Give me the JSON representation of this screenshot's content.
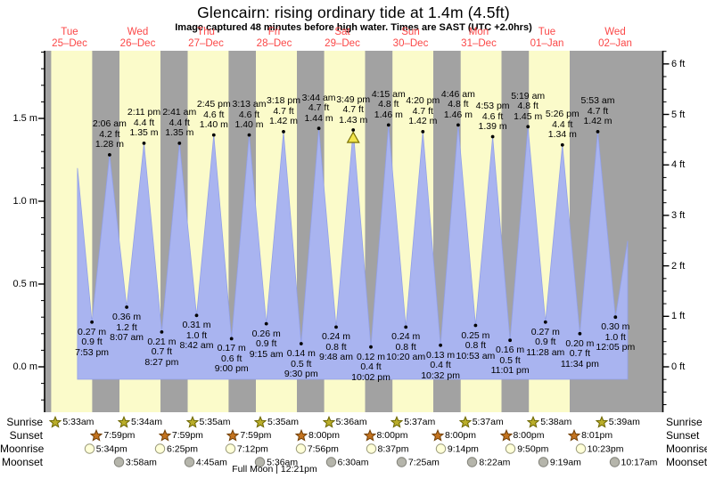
{
  "title": "Glencairn: rising  ordinary tide at 1.4m (4.5ft)",
  "subtitle": "Image captured 48 minutes before high water. Times are SAST (UTC +2.0hrs)",
  "colors": {
    "day_band": "#fbfbca",
    "night_band": "#a2a2a2",
    "tide_fill": "#a9b4f0",
    "tide_stroke": "#92a0e8",
    "date_red": "#fb4747",
    "marker_fill": "#f3e64b",
    "marker_stroke": "#7a7000",
    "sunrise_star": "#b9ad2a",
    "sunrise_stroke": "#6b6400",
    "sunset_star": "#c3731f",
    "sunset_stroke": "#713f06",
    "moonrise_fill": "#ffffd8",
    "moonrise_stroke": "#9a9a7a",
    "moonset_fill": "#b5b5ab",
    "moonset_stroke": "#83837b"
  },
  "chart_data": {
    "type": "area",
    "title": "Glencairn: rising  ordinary tide at 1.4m (4.5ft)",
    "y_axis_left_labels": [
      "0.0 m",
      "0.5 m",
      "1.0 m",
      "1.5 m"
    ],
    "y_axis_right_labels": [
      "0 ft",
      "1 ft",
      "2 ft",
      "3 ft",
      "4 ft",
      "5 ft",
      "6 ft"
    ],
    "ylim_m": [
      -0.27,
      1.91
    ],
    "days": [
      {
        "weekday": "Tue",
        "date": "25–Dec"
      },
      {
        "weekday": "Wed",
        "date": "26–Dec"
      },
      {
        "weekday": "Thu",
        "date": "27–Dec"
      },
      {
        "weekday": "Fri",
        "date": "28–Dec"
      },
      {
        "weekday": "Sat",
        "date": "29–Dec"
      },
      {
        "weekday": "Sun",
        "date": "30–Dec"
      },
      {
        "weekday": "Mon",
        "date": "31–Dec"
      },
      {
        "weekday": "Tue",
        "date": "01–Jan"
      },
      {
        "weekday": "Wed",
        "date": "02–Jan"
      }
    ],
    "curve_start": {
      "day": 0,
      "h24": 14.8,
      "m": 1.2
    },
    "curve_end": {
      "day": 8,
      "h24": 16.4,
      "m": 0.76
    },
    "tides": [
      {
        "day": 0,
        "time": "7:53 pm",
        "type": "low",
        "m": "0.27",
        "ft": "0.9"
      },
      {
        "day": 1,
        "time": "2:06 am",
        "type": "high",
        "m": "1.28",
        "ft": "4.2"
      },
      {
        "day": 1,
        "time": "8:07 am",
        "type": "low",
        "m": "0.36",
        "ft": "1.2"
      },
      {
        "day": 1,
        "time": "2:11 pm",
        "type": "high",
        "m": "1.35",
        "ft": "4.4"
      },
      {
        "day": 1,
        "time": "8:27 pm",
        "type": "low",
        "m": "0.21",
        "ft": "0.7"
      },
      {
        "day": 2,
        "time": "2:41 am",
        "type": "high",
        "m": "1.35",
        "ft": "4.4"
      },
      {
        "day": 2,
        "time": "8:42 am",
        "type": "low",
        "m": "0.31",
        "ft": "1.0"
      },
      {
        "day": 2,
        "time": "2:45 pm",
        "type": "high",
        "m": "1.40",
        "ft": "4.6"
      },
      {
        "day": 2,
        "time": "9:00 pm",
        "type": "low",
        "m": "0.17",
        "ft": "0.6"
      },
      {
        "day": 3,
        "time": "3:13 am",
        "type": "high",
        "m": "1.40",
        "ft": "4.6"
      },
      {
        "day": 3,
        "time": "9:15 am",
        "type": "low",
        "m": "0.26",
        "ft": "0.9"
      },
      {
        "day": 3,
        "time": "3:18 pm",
        "type": "high",
        "m": "1.42",
        "ft": "4.7"
      },
      {
        "day": 3,
        "time": "9:30 pm",
        "type": "low",
        "m": "0.14",
        "ft": "0.5"
      },
      {
        "day": 4,
        "time": "3:44 am",
        "type": "high",
        "m": "1.44",
        "ft": "4.7"
      },
      {
        "day": 4,
        "time": "9:48 am",
        "type": "low",
        "m": "0.24",
        "ft": "0.8"
      },
      {
        "day": 4,
        "time": "3:49 pm",
        "type": "high",
        "m": "1.43",
        "ft": "4.7",
        "now": true
      },
      {
        "day": 4,
        "time": "10:02 pm",
        "type": "low",
        "m": "0.12",
        "ft": "0.4"
      },
      {
        "day": 5,
        "time": "4:15 am",
        "type": "high",
        "m": "1.46",
        "ft": "4.8"
      },
      {
        "day": 5,
        "time": "10:20 am",
        "type": "low",
        "m": "0.24",
        "ft": "0.8"
      },
      {
        "day": 5,
        "time": "4:20 pm",
        "type": "high",
        "m": "1.42",
        "ft": "4.7"
      },
      {
        "day": 5,
        "time": "10:32 pm",
        "type": "low",
        "m": "0.13",
        "ft": "0.4"
      },
      {
        "day": 6,
        "time": "4:46 am",
        "type": "high",
        "m": "1.46",
        "ft": "4.8"
      },
      {
        "day": 6,
        "time": "10:53 am",
        "type": "low",
        "m": "0.25",
        "ft": "0.8"
      },
      {
        "day": 6,
        "time": "4:53 pm",
        "type": "high",
        "m": "1.39",
        "ft": "4.6"
      },
      {
        "day": 6,
        "time": "11:01 pm",
        "type": "low",
        "m": "0.16",
        "ft": "0.5"
      },
      {
        "day": 7,
        "time": "5:19 am",
        "type": "high",
        "m": "1.45",
        "ft": "4.8"
      },
      {
        "day": 7,
        "time": "11:28 am",
        "type": "low",
        "m": "0.27",
        "ft": "0.9"
      },
      {
        "day": 7,
        "time": "5:26 pm",
        "type": "high",
        "m": "1.34",
        "ft": "4.4"
      },
      {
        "day": 7,
        "time": "11:34 pm",
        "type": "low",
        "m": "0.20",
        "ft": "0.7"
      },
      {
        "day": 8,
        "time": "5:53 am",
        "type": "high",
        "m": "1.42",
        "ft": "4.7"
      },
      {
        "day": 8,
        "time": "12:05 pm",
        "type": "low",
        "m": "0.30",
        "ft": "1.0"
      }
    ],
    "astro": {
      "rows": [
        {
          "label": "Sunrise",
          "icon": "sunrise-star-icon",
          "times": [
            {
              "day": 0,
              "time": "5:33am"
            },
            {
              "day": 1,
              "time": "5:34am"
            },
            {
              "day": 2,
              "time": "5:35am"
            },
            {
              "day": 3,
              "time": "5:35am"
            },
            {
              "day": 4,
              "time": "5:36am"
            },
            {
              "day": 5,
              "time": "5:37am"
            },
            {
              "day": 6,
              "time": "5:37am"
            },
            {
              "day": 7,
              "time": "5:38am"
            },
            {
              "day": 8,
              "time": "5:39am"
            }
          ]
        },
        {
          "label": "Sunset",
          "icon": "sunset-star-icon",
          "times": [
            {
              "day": 0,
              "time": "7:59pm"
            },
            {
              "day": 1,
              "time": "7:59pm"
            },
            {
              "day": 2,
              "time": "7:59pm"
            },
            {
              "day": 3,
              "time": "8:00pm"
            },
            {
              "day": 4,
              "time": "8:00pm"
            },
            {
              "day": 5,
              "time": "8:00pm"
            },
            {
              "day": 6,
              "time": "8:00pm"
            },
            {
              "day": 7,
              "time": "8:01pm"
            }
          ]
        },
        {
          "label": "Moonrise",
          "icon": "moonrise-circle-icon",
          "times": [
            {
              "day": 0,
              "time": "5:34pm"
            },
            {
              "day": 1,
              "time": "6:25pm"
            },
            {
              "day": 2,
              "time": "7:12pm"
            },
            {
              "day": 3,
              "time": "7:56pm"
            },
            {
              "day": 4,
              "time": "8:37pm"
            },
            {
              "day": 5,
              "time": "9:14pm"
            },
            {
              "day": 6,
              "time": "9:50pm"
            },
            {
              "day": 7,
              "time": "10:23pm"
            }
          ]
        },
        {
          "label": "Moonset",
          "icon": "moonset-circle-icon",
          "times": [
            {
              "day": 1,
              "time": "3:58am"
            },
            {
              "day": 2,
              "time": "4:45am"
            },
            {
              "day": 3,
              "time": "5:36am"
            },
            {
              "day": 4,
              "time": "6:30am"
            },
            {
              "day": 5,
              "time": "7:25am"
            },
            {
              "day": 6,
              "time": "8:22am"
            },
            {
              "day": 7,
              "time": "9:19am"
            },
            {
              "day": 8,
              "time": "10:17am"
            }
          ]
        }
      ],
      "full_moon": "Full Moon | 12:21pm"
    }
  }
}
